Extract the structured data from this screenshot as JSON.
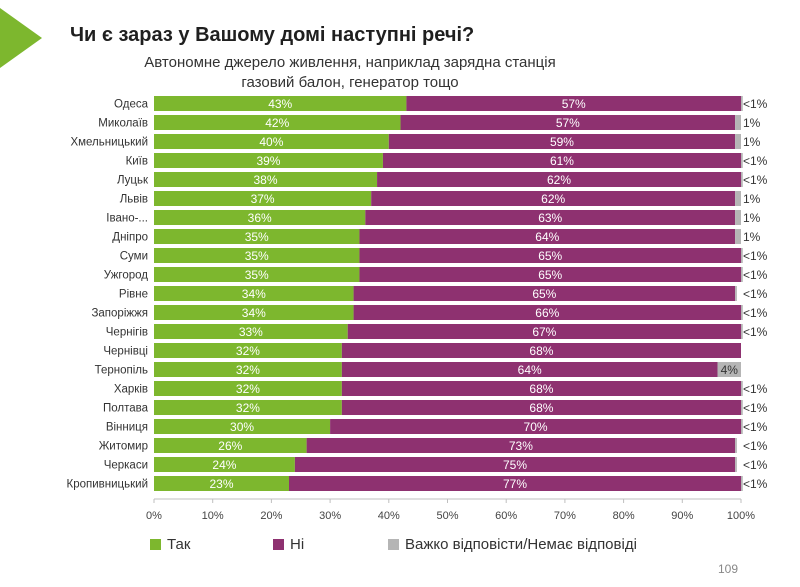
{
  "title": "Чи є зараз у Вашому домі наступні речі?",
  "subtitle_line1": "Автономне джерело живлення, наприклад зарядна станція",
  "subtitle_line2": "газовий балон, генератор тощо",
  "page_number": "109",
  "chart_data": {
    "type": "bar",
    "orientation": "horizontal",
    "stacked": true,
    "normalized_percent": true,
    "categories": [
      "Одеса",
      "Миколаїв",
      "Хмельницький",
      "Київ",
      "Луцьк",
      "Львів",
      "Івано-...",
      "Дніпро",
      "Суми",
      "Ужгород",
      "Рівне",
      "Запоріжжя",
      "Чернігів",
      "Чернівці",
      "Тернопіль",
      "Харків",
      "Полтава",
      "Вінниця",
      "Житомир",
      "Черкаси",
      "Кропивницький"
    ],
    "series": [
      {
        "name": "Так",
        "color": "#7db72e",
        "values": [
          43,
          42,
          40,
          39,
          38,
          37,
          36,
          35,
          35,
          35,
          34,
          34,
          33,
          32,
          32,
          32,
          32,
          30,
          26,
          24,
          23
        ],
        "labels": [
          "43%",
          "42%",
          "40%",
          "39%",
          "38%",
          "37%",
          "36%",
          "35%",
          "35%",
          "35%",
          "34%",
          "34%",
          "33%",
          "32%",
          "32%",
          "32%",
          "32%",
          "30%",
          "26%",
          "24%",
          "23%"
        ]
      },
      {
        "name": "Ні",
        "color": "#8e3170",
        "values": [
          57,
          57,
          59,
          61,
          62,
          62,
          63,
          64,
          65,
          65,
          65,
          66,
          67,
          68,
          64,
          68,
          68,
          70,
          73,
          75,
          77
        ],
        "labels": [
          "57%",
          "57%",
          "59%",
          "61%",
          "62%",
          "62%",
          "63%",
          "64%",
          "65%",
          "65%",
          "65%",
          "66%",
          "67%",
          "68%",
          "64%",
          "68%",
          "68%",
          "70%",
          "73%",
          "75%",
          "77%"
        ]
      },
      {
        "name": "Важко відповісти/Немає відповіді",
        "color": "#b5b5b5",
        "values": [
          0.3,
          1,
          1,
          0.3,
          0.3,
          1,
          1,
          1,
          0.3,
          0.3,
          0.3,
          0.3,
          0.3,
          0,
          4,
          0.3,
          0.3,
          0.3,
          0.3,
          0.3,
          0.3
        ],
        "labels": [
          "<1%",
          "1%",
          "1%",
          "<1%",
          "<1%",
          "1%",
          "1%",
          "1%",
          "<1%",
          "<1%",
          "<1%",
          "<1%",
          "<1%",
          "",
          "4%",
          "<1%",
          "<1%",
          "<1%",
          "<1%",
          "<1%",
          "<1%"
        ]
      }
    ],
    "xlim": [
      0,
      100
    ],
    "xticks": [
      "0%",
      "10%",
      "20%",
      "30%",
      "40%",
      "50%",
      "60%",
      "70%",
      "80%",
      "90%",
      "100%"
    ],
    "grid": false,
    "legend_position": "bottom"
  }
}
